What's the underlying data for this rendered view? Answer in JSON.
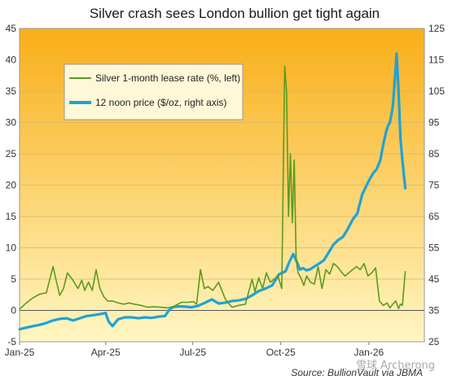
{
  "watermark": "雪球 Archerong",
  "source_note": "Source: BullionVault via JBMA",
  "colors": {
    "lease_rate": "#5c9a1f",
    "price": "#1fa2d6",
    "background_top": "#f9ae18",
    "background_bottom": "#fff6c2"
  },
  "chart_data": {
    "type": "line",
    "title": "Silver crash sees London bullion get tight again",
    "xlabel": "",
    "ylabel_left": "",
    "ylabel_right": "",
    "x_ticks": [
      "Jan-25",
      "Apr-25",
      "Jul-25",
      "Oct-25",
      "Jan-26"
    ],
    "x_range": [
      "2025-01-01",
      "2026-02-28"
    ],
    "y_left_range": [
      -5,
      45
    ],
    "y_left_ticks": [
      -5,
      0,
      5,
      10,
      15,
      20,
      25,
      30,
      35,
      40,
      45
    ],
    "y_right_range": [
      25,
      125
    ],
    "y_right_ticks": [
      25,
      35,
      45,
      55,
      65,
      75,
      85,
      95,
      105,
      115,
      125
    ],
    "grid": "horizontal",
    "legend_position": "top-left",
    "series": [
      {
        "name": "Silver 1-month lease rate (%, left)",
        "axis": "left",
        "x": [
          "2025-01-01",
          "2025-01-08",
          "2025-01-15",
          "2025-01-22",
          "2025-01-29",
          "2025-02-05",
          "2025-02-08",
          "2025-02-12",
          "2025-02-16",
          "2025-02-20",
          "2025-02-25",
          "2025-03-03",
          "2025-03-07",
          "2025-03-10",
          "2025-03-14",
          "2025-03-18",
          "2025-03-22",
          "2025-03-26",
          "2025-03-30",
          "2025-04-03",
          "2025-04-08",
          "2025-04-14",
          "2025-04-20",
          "2025-04-25",
          "2025-05-01",
          "2025-05-08",
          "2025-05-15",
          "2025-05-22",
          "2025-05-29",
          "2025-06-05",
          "2025-06-12",
          "2025-06-19",
          "2025-06-26",
          "2025-07-02",
          "2025-07-05",
          "2025-07-09",
          "2025-07-13",
          "2025-07-17",
          "2025-07-22",
          "2025-07-28",
          "2025-08-04",
          "2025-08-11",
          "2025-08-18",
          "2025-08-25",
          "2025-09-01",
          "2025-09-04",
          "2025-09-08",
          "2025-09-12",
          "2025-09-16",
          "2025-09-20",
          "2025-09-24",
          "2025-09-28",
          "2025-10-02",
          "2025-10-05",
          "2025-10-07",
          "2025-10-09",
          "2025-10-11",
          "2025-10-13",
          "2025-10-15",
          "2025-10-17",
          "2025-10-19",
          "2025-10-22",
          "2025-10-25",
          "2025-10-28",
          "2025-11-01",
          "2025-11-05",
          "2025-11-09",
          "2025-11-13",
          "2025-11-17",
          "2025-11-21",
          "2025-11-25",
          "2025-11-29",
          "2025-12-03",
          "2025-12-07",
          "2025-12-11",
          "2025-12-15",
          "2025-12-19",
          "2025-12-23",
          "2025-12-27",
          "2025-12-31",
          "2026-01-04",
          "2026-01-08",
          "2026-01-12",
          "2026-01-16",
          "2026-01-20",
          "2026-01-23",
          "2026-01-26",
          "2026-01-29",
          "2026-02-01",
          "2026-02-03",
          "2026-02-05",
          "2026-02-08"
        ],
        "values": [
          0.2,
          1.2,
          2.0,
          2.6,
          2.8,
          7.0,
          5.0,
          2.4,
          3.5,
          6.0,
          5.0,
          3.5,
          4.8,
          3.2,
          4.5,
          3.2,
          6.5,
          3.5,
          2.2,
          1.5,
          1.5,
          1.2,
          1.0,
          1.2,
          1.0,
          0.8,
          0.5,
          0.6,
          0.5,
          0.4,
          0.7,
          1.3,
          1.3,
          1.4,
          1.0,
          6.5,
          3.5,
          3.8,
          3.2,
          4.5,
          1.8,
          0.5,
          0.8,
          1.0,
          5.0,
          3.0,
          5.2,
          3.5,
          6.0,
          4.5,
          5.0,
          5.5,
          3.5,
          39.0,
          35.0,
          15.0,
          25.0,
          14.0,
          24.0,
          8.0,
          6.0,
          5.2,
          4.0,
          5.5,
          4.5,
          4.2,
          7.0,
          3.5,
          6.5,
          5.8,
          7.5,
          7.0,
          6.2,
          5.5,
          6.0,
          6.5,
          7.0,
          6.5,
          7.5,
          5.5,
          6.0,
          6.8,
          1.5,
          0.8,
          1.2,
          0.4,
          1.0,
          1.5,
          0.3,
          1.0,
          0.8,
          6.2
        ]
      },
      {
        "name": "12 noon price ($/oz, right axis)",
        "axis": "right",
        "x": [
          "2025-01-01",
          "2025-01-08",
          "2025-01-15",
          "2025-01-22",
          "2025-01-29",
          "2025-02-05",
          "2025-02-12",
          "2025-02-19",
          "2025-02-26",
          "2025-03-05",
          "2025-03-12",
          "2025-03-19",
          "2025-03-26",
          "2025-04-01",
          "2025-04-04",
          "2025-04-08",
          "2025-04-14",
          "2025-04-21",
          "2025-04-28",
          "2025-05-05",
          "2025-05-12",
          "2025-05-19",
          "2025-05-26",
          "2025-06-02",
          "2025-06-06",
          "2025-06-10",
          "2025-06-16",
          "2025-06-23",
          "2025-06-30",
          "2025-07-07",
          "2025-07-14",
          "2025-07-21",
          "2025-07-28",
          "2025-08-04",
          "2025-08-11",
          "2025-08-18",
          "2025-08-25",
          "2025-09-01",
          "2025-09-08",
          "2025-09-15",
          "2025-09-22",
          "2025-09-29",
          "2025-10-06",
          "2025-10-10",
          "2025-10-14",
          "2025-10-17",
          "2025-10-21",
          "2025-10-24",
          "2025-10-28",
          "2025-11-01",
          "2025-11-05",
          "2025-11-10",
          "2025-11-15",
          "2025-11-20",
          "2025-11-25",
          "2025-11-30",
          "2025-12-05",
          "2025-12-10",
          "2025-12-15",
          "2025-12-20",
          "2025-12-25",
          "2025-12-29",
          "2026-01-02",
          "2026-01-06",
          "2026-01-09",
          "2026-01-13",
          "2026-01-16",
          "2026-01-19",
          "2026-01-21",
          "2026-01-23",
          "2026-01-26",
          "2026-01-28",
          "2026-01-30",
          "2026-02-01",
          "2026-02-03",
          "2026-02-05",
          "2026-02-08"
        ],
        "values": [
          29.0,
          29.5,
          30.0,
          30.4,
          31.0,
          31.8,
          32.3,
          32.5,
          31.8,
          32.5,
          33.2,
          33.5,
          33.8,
          34.2,
          31.5,
          30.0,
          32.2,
          32.8,
          32.8,
          32.5,
          32.8,
          32.6,
          33.0,
          33.2,
          35.0,
          36.0,
          36.3,
          36.2,
          36.0,
          36.5,
          37.5,
          38.5,
          37.2,
          37.5,
          38.0,
          38.2,
          38.7,
          39.8,
          41.2,
          42.0,
          43.0,
          46.5,
          47.5,
          50.5,
          53.0,
          51.0,
          48.0,
          48.5,
          47.8,
          48.2,
          49.0,
          50.0,
          51.0,
          53.5,
          56.0,
          57.5,
          58.5,
          61.0,
          64.0,
          66.0,
          72.0,
          74.5,
          77.0,
          79.0,
          80.0,
          83.0,
          88.0,
          92.0,
          94.0,
          95.0,
          100.0,
          108.0,
          117.0,
          105.0,
          90.0,
          83.0,
          74.0
        ]
      }
    ]
  }
}
